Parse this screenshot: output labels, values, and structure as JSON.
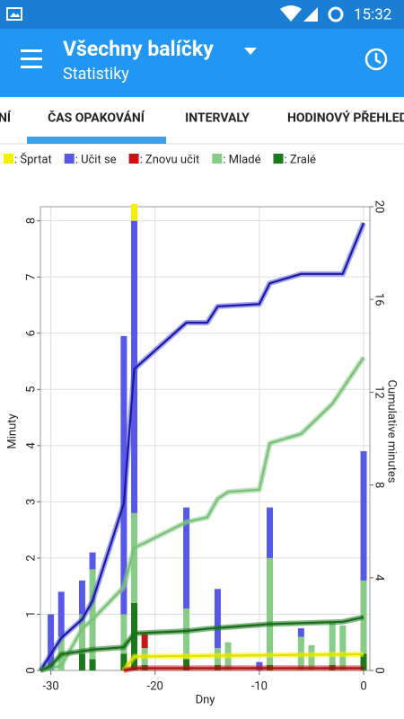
{
  "status_bar": {
    "time": "15:32"
  },
  "toolbar": {
    "title": "Všechny balíčky",
    "subtitle": "Statistiky"
  },
  "tabs": [
    "NÍ",
    "ČAS OPAKOVÁNÍ",
    "INTERVALY",
    "HODINOVÝ PŘEHLED"
  ],
  "chart_data": {
    "type": "bar",
    "x_label": "Dny",
    "y_label": "Minuty",
    "y2_label": "Cumulative minutes",
    "x": [
      -30,
      -29,
      -27,
      -26,
      -23,
      -22,
      -21,
      -17,
      -14,
      -13,
      -10,
      -9,
      -6,
      -5,
      -3,
      -2,
      0
    ],
    "series": [
      {
        "name": ": Šprtat",
        "color": "#f2f200",
        "line_color": "#e0e000",
        "values": [
          null,
          null,
          null,
          null,
          null,
          0.3,
          null,
          null,
          null,
          null,
          null,
          null,
          null,
          null,
          null,
          null,
          null
        ],
        "cumulative": {
          "x": [
            -23,
            -22,
            0
          ],
          "values": [
            0,
            0.6,
            0.7
          ]
        }
      },
      {
        "name": ": Učit se",
        "color": "#5858e6",
        "line_color": "#1818a0",
        "values": [
          1.0,
          0.8,
          0.6,
          0.3,
          4.95,
          5.2,
          null,
          1.8,
          1.05,
          null,
          0.15,
          0.9,
          0.15,
          null,
          null,
          null,
          2.3
        ],
        "cumulative": {
          "x": [
            -31,
            -29,
            -27,
            -26,
            -23,
            -22,
            -21,
            -17,
            -15,
            -14,
            -10,
            -9,
            -6,
            -2,
            0
          ],
          "values": [
            0,
            1.4,
            2.2,
            3.0,
            7.2,
            13.0,
            13.4,
            15.0,
            15.0,
            15.7,
            15.8,
            16.7,
            17.1,
            17.1,
            19.3
          ]
        }
      },
      {
        "name": ": Znovu učit",
        "color": "#cc1414",
        "line_color": "#a01010",
        "values": [
          null,
          null,
          null,
          null,
          null,
          null,
          0.25,
          null,
          null,
          null,
          null,
          null,
          null,
          null,
          null,
          null,
          null
        ],
        "cumulative": {
          "x": [
            -23,
            -22,
            0
          ],
          "values": [
            0,
            0.1,
            0.1
          ]
        }
      },
      {
        "name": ": Mladé",
        "color": "#88cc88",
        "line_color": "#78bf78",
        "values": [
          null,
          0.6,
          0.7,
          1.6,
          0.7,
          1.6,
          0.3,
          0.9,
          0.3,
          0.5,
          null,
          1.9,
          0.6,
          0.45,
          0.75,
          0.8,
          1.3
        ],
        "cumulative": {
          "x": [
            -31,
            -29,
            -27,
            -26,
            -23,
            -22,
            -21,
            -17,
            -15,
            -14,
            -13,
            -10,
            -9,
            -6,
            -3,
            0
          ],
          "values": [
            0,
            0.2,
            1.8,
            2.2,
            3.6,
            5.3,
            5.5,
            6.4,
            6.6,
            7.4,
            7.7,
            7.8,
            9.8,
            10.2,
            11.5,
            13.5
          ]
        }
      },
      {
        "name": ": Zralé",
        "color": "#1a7a1a",
        "line_color": "#1a6a1a",
        "values": [
          null,
          null,
          0.3,
          0.2,
          0.3,
          1.2,
          0.1,
          0.2,
          0.1,
          null,
          null,
          0.1,
          null,
          null,
          0.1,
          null,
          0.3
        ],
        "cumulative": {
          "x": [
            -31,
            -30,
            -29,
            -26,
            -23,
            -22,
            -17,
            -15,
            -9,
            -2,
            0
          ],
          "values": [
            0,
            0.2,
            0.7,
            0.9,
            1.0,
            1.6,
            1.7,
            1.8,
            2.0,
            2.1,
            2.3
          ]
        }
      }
    ],
    "xlim": [
      -31,
      0.6
    ],
    "ylim": [
      0,
      8.25
    ],
    "y2lim": [
      0,
      20
    ],
    "xticks": [
      -30,
      -20,
      -10,
      0
    ],
    "yticks": [
      0,
      1,
      2,
      3,
      4,
      5,
      6,
      7,
      8
    ],
    "y2ticks": [
      0,
      4,
      8,
      12,
      16,
      20
    ],
    "grid": true
  }
}
